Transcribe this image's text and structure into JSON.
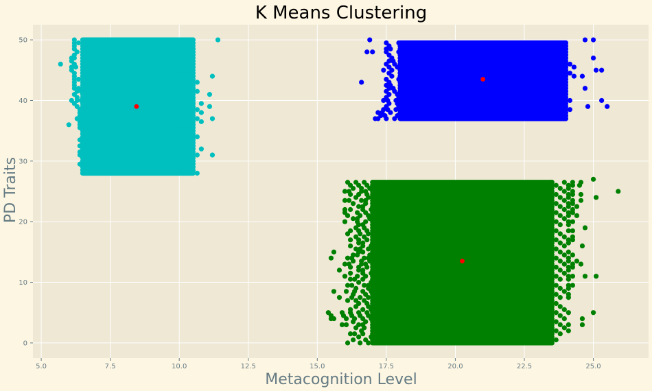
{
  "chart_data": {
    "type": "scatter",
    "title": "K Means Clustering",
    "xlabel": "Metacognition Level",
    "ylabel": "PD Traits",
    "xlim": [
      4.7,
      27.0
    ],
    "ylim": [
      -2.5,
      52.5
    ],
    "xticks": [
      5.0,
      7.5,
      10.0,
      12.5,
      15.0,
      17.5,
      20.0,
      22.5,
      25.0
    ],
    "xtick_labels": [
      "5.0",
      "7.5",
      "10.0",
      "12.5",
      "15.0",
      "17.5",
      "20.0",
      "22.5",
      "25.0"
    ],
    "yticks": [
      0,
      10,
      20,
      30,
      40,
      50
    ],
    "ytick_labels": [
      "0",
      "10",
      "20",
      "30",
      "40",
      "50"
    ],
    "grid": true,
    "colors": {
      "figure_bg": "#fdf6e3",
      "plot_bg": "#eee8d5",
      "grid": "#ffffff",
      "axis_text": "#657b83",
      "centroid": "#ff0000"
    },
    "series": [
      {
        "color": "#00bfbf",
        "y_values": [
          28,
          50
        ],
        "core_x_range": [
          6.5,
          10.5
        ],
        "rows": [
          [
            6.6,
            10.7
          ],
          [
            6.6,
            10.6
          ],
          [
            6.5,
            10.5
          ],
          [
            6.4,
            10.5
          ],
          [
            6.5,
            10.6
          ],
          [
            6.5,
            10.7
          ],
          [
            6.4,
            10.8
          ],
          [
            6.4,
            10.5
          ],
          [
            6.5,
            10.9
          ],
          [
            6.4,
            10.6
          ],
          [
            6.5,
            10.7
          ],
          [
            6.4,
            10.6
          ],
          [
            6.5,
            10.8
          ],
          [
            6.6,
            10.9
          ],
          [
            6.5,
            10.7
          ],
          [
            6.4,
            10.6
          ],
          [
            6.4,
            10.8
          ],
          [
            6.4,
            11.0
          ],
          [
            6.3,
            10.7
          ],
          [
            6.4,
            10.8
          ],
          [
            6.4,
            10.9
          ],
          [
            6.4,
            10.7
          ],
          [
            6.3,
            10.6
          ],
          [
            6.2,
            10.8
          ],
          [
            6.3,
            10.5
          ],
          [
            6.3,
            10.8
          ],
          [
            6.2,
            10.7
          ],
          [
            6.3,
            10.8
          ],
          [
            6.2,
            10.7
          ],
          [
            6.2,
            10.6
          ],
          [
            6.2,
            10.7
          ],
          [
            6.2,
            10.6
          ],
          [
            6.2,
            10.7
          ],
          [
            6.2,
            10.5
          ],
          [
            6.1,
            10.4
          ],
          [
            6.1,
            10.6
          ],
          [
            6.2,
            10.6
          ],
          [
            6.1,
            10.5
          ],
          [
            6.2,
            10.7
          ],
          [
            6.2,
            10.6
          ],
          [
            6.3,
            10.7
          ],
          [
            6.2,
            10.6
          ],
          [
            6.2,
            10.4
          ],
          [
            6.2,
            10.5
          ],
          [
            6.2,
            10.5
          ]
        ],
        "outliers": [
          [
            5.7,
            46
          ],
          [
            11.4,
            50
          ],
          [
            6.0,
            36
          ],
          [
            11.2,
            31
          ],
          [
            11.2,
            44
          ],
          [
            6.1,
            40
          ],
          [
            11.2,
            37
          ],
          [
            6.1,
            47
          ],
          [
            11.1,
            39
          ],
          [
            11.1,
            41
          ]
        ],
        "centroid": [
          8.45,
          39.0
        ]
      },
      {
        "color": "#0000ff",
        "y_values": [
          37,
          50
        ],
        "core_x_range": [
          18.0,
          24.0
        ],
        "rows": [
          [
            17.2,
            24.1
          ],
          [
            17.3,
            24.2
          ],
          [
            17.2,
            24.0
          ],
          [
            17.4,
            24.3
          ],
          [
            17.5,
            24.1
          ],
          [
            17.6,
            24.0
          ],
          [
            17.4,
            24.2
          ],
          [
            17.5,
            24.1
          ],
          [
            17.6,
            24.0
          ],
          [
            17.5,
            24.0
          ],
          [
            17.6,
            24.1
          ],
          [
            17.5,
            24.2
          ],
          [
            17.6,
            24.0
          ],
          [
            17.5,
            24.2
          ],
          [
            17.7,
            24.3
          ],
          [
            17.6,
            24.2
          ],
          [
            17.4,
            24.1
          ],
          [
            17.6,
            24.3
          ],
          [
            17.5,
            24.3
          ],
          [
            17.6,
            24.1
          ],
          [
            17.7,
            24.2
          ],
          [
            17.6,
            24.0
          ],
          [
            17.5,
            24.1
          ],
          [
            17.5,
            24.2
          ],
          [
            17.6,
            24.0
          ],
          [
            17.5,
            24.0
          ]
        ],
        "outliers": [
          [
            16.6,
            43
          ],
          [
            17.1,
            37
          ],
          [
            25.5,
            39
          ],
          [
            25.3,
            40
          ],
          [
            24.8,
            39
          ],
          [
            24.7,
            42
          ],
          [
            25.1,
            45
          ],
          [
            25.3,
            45
          ],
          [
            25.0,
            47
          ],
          [
            24.7,
            50
          ],
          [
            25.0,
            50
          ],
          [
            16.8,
            48
          ],
          [
            16.9,
            50
          ],
          [
            17.0,
            48
          ],
          [
            24.6,
            44
          ]
        ],
        "centroid": [
          21.0,
          43.5
        ]
      },
      {
        "color": "#008000",
        "y_values": [
          0,
          27
        ],
        "core_x_range": [
          17.0,
          23.5
        ],
        "rows": [
          [
            16.1,
            23.5
          ],
          [
            16.3,
            23.8
          ],
          [
            16.5,
            23.6
          ],
          [
            16.2,
            23.9
          ],
          [
            16.6,
            24.1
          ],
          [
            16.4,
            24.0
          ],
          [
            15.9,
            24.2
          ],
          [
            16.3,
            23.7
          ],
          [
            15.6,
            24.0
          ],
          [
            15.5,
            23.8
          ],
          [
            15.9,
            24.1
          ],
          [
            16.2,
            24.0
          ],
          [
            16.4,
            23.8
          ],
          [
            16.5,
            24.0
          ],
          [
            16.1,
            23.9
          ],
          [
            15.8,
            24.1
          ],
          [
            16.3,
            24.2
          ],
          [
            15.6,
            24.0
          ],
          [
            16.4,
            24.1
          ],
          [
            16.1,
            24.3
          ],
          [
            16.5,
            23.9
          ],
          [
            16.2,
            24.2
          ],
          [
            16.0,
            24.3
          ],
          [
            16.2,
            24.1
          ],
          [
            16.5,
            24.4
          ],
          [
            16.2,
            24.3
          ],
          [
            16.0,
            24.6
          ],
          [
            16.3,
            24.6
          ],
          [
            16.1,
            24.1
          ],
          [
            16.3,
            24.3
          ],
          [
            16.5,
            24.2
          ],
          [
            16.4,
            24.0
          ],
          [
            16.2,
            24.1
          ],
          [
            16.5,
            24.2
          ],
          [
            16.2,
            24.3
          ],
          [
            16.4,
            24.4
          ],
          [
            16.1,
            24.0
          ],
          [
            16.2,
            24.4
          ],
          [
            16.4,
            23.9
          ],
          [
            16.5,
            24.2
          ],
          [
            16.0,
            24.3
          ],
          [
            16.3,
            24.1
          ],
          [
            16.1,
            24.5
          ],
          [
            16.0,
            24.3
          ],
          [
            16.2,
            24.4
          ],
          [
            16.5,
            24.6
          ],
          [
            16.3,
            24.5
          ],
          [
            16.0,
            24.7
          ],
          [
            16.4,
            24.3
          ],
          [
            16.2,
            24.6
          ],
          [
            16.0,
            24.4
          ],
          [
            16.3,
            24.4
          ],
          [
            16.2,
            24.4
          ],
          [
            16.1,
            24.6
          ]
        ],
        "outliers": [
          [
            25.9,
            25
          ],
          [
            25.1,
            24
          ],
          [
            25.0,
            27
          ],
          [
            24.7,
            19
          ],
          [
            24.6,
            16
          ],
          [
            24.7,
            11
          ],
          [
            25.1,
            11
          ],
          [
            25.0,
            5
          ],
          [
            24.6,
            4
          ],
          [
            24.6,
            3
          ],
          [
            24.5,
            26
          ],
          [
            15.4,
            5
          ],
          [
            15.5,
            4
          ],
          [
            15.8,
            12
          ],
          [
            15.6,
            15
          ],
          [
            15.5,
            14
          ],
          [
            16.0,
            22
          ]
        ],
        "centroid": [
          20.25,
          13.5
        ]
      }
    ]
  }
}
